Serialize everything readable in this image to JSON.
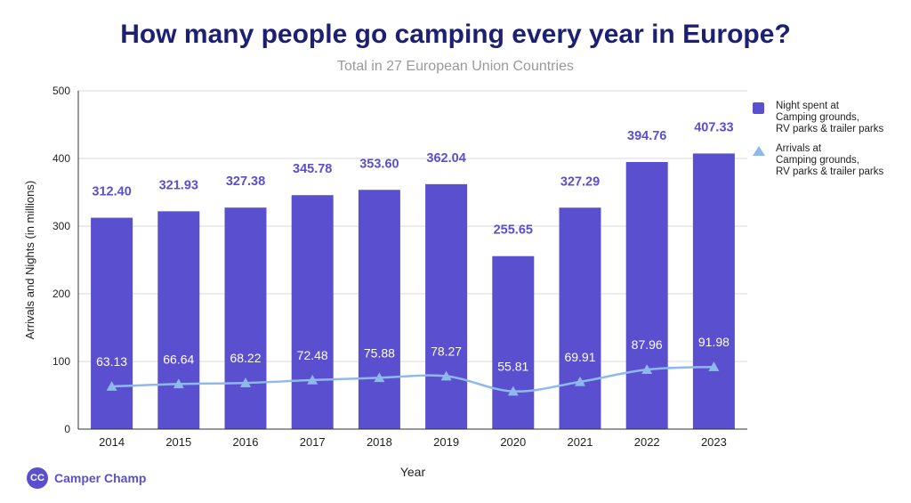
{
  "chart_data": {
    "type": "bar",
    "title": "How many people go camping every year in Europe?",
    "subtitle": "Total in 27 European Union Countries",
    "xlabel": "Year",
    "ylabel": "Arrivals and Nights (in millions)",
    "ylim": [
      0,
      500
    ],
    "yticks": [
      0,
      100,
      200,
      300,
      400,
      500
    ],
    "grid": true,
    "legend_position": "right",
    "categories": [
      "2014",
      "2015",
      "2016",
      "2017",
      "2018",
      "2019",
      "2020",
      "2021",
      "2022",
      "2023"
    ],
    "series": [
      {
        "name": "Night spent at\nCamping grounds,\nRV parks & trailer parks",
        "type": "bar",
        "color": "#5a4fcf",
        "values": [
          312.4,
          321.93,
          327.38,
          345.78,
          353.6,
          362.04,
          255.65,
          327.29,
          394.76,
          407.33
        ],
        "labels": [
          "312.40",
          "321.93",
          "327.38",
          "345.78",
          "353.60",
          "362.04",
          "255.65",
          "327.29",
          "394.76",
          "407.33"
        ]
      },
      {
        "name": "Arrivals at\nCamping grounds,\nRV parks & trailer parks",
        "type": "line",
        "color": "#8fb9ec",
        "marker": "triangle",
        "values": [
          63.13,
          66.64,
          68.22,
          72.48,
          75.88,
          78.27,
          55.81,
          69.91,
          87.96,
          91.98
        ],
        "labels": [
          "63.13",
          "66.64",
          "68.22",
          "72.48",
          "75.88",
          "78.27",
          "55.81",
          "69.91",
          "87.96",
          "91.98"
        ]
      }
    ]
  },
  "brand": {
    "logo_text": "CC",
    "name": "Camper Champ"
  }
}
